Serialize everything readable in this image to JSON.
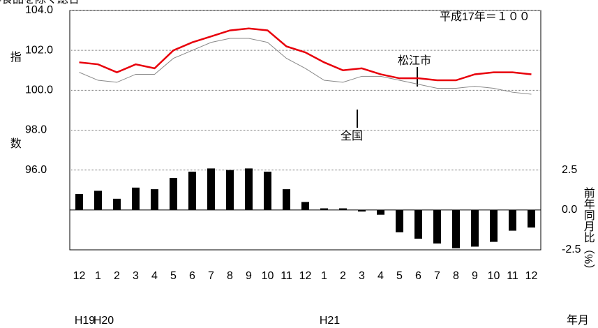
{
  "chart_data": {
    "type": "combo",
    "title": "生鮮食品を除く総合",
    "note": "平成17年＝１００",
    "ylabel": "指数",
    "y2label": "前年同月比（%）",
    "xlabel": "年月",
    "categories": [
      "12",
      "1",
      "2",
      "3",
      "4",
      "5",
      "6",
      "7",
      "8",
      "9",
      "10",
      "11",
      "12",
      "1",
      "2",
      "3",
      "4",
      "5",
      "6",
      "7",
      "8",
      "9",
      "10",
      "11",
      "12"
    ],
    "years": [
      "H19",
      "H20",
      null,
      null,
      null,
      null,
      null,
      null,
      null,
      null,
      null,
      null,
      null,
      "H21",
      null,
      null,
      null,
      null,
      null,
      null,
      null,
      null,
      null,
      null,
      null
    ],
    "series": [
      {
        "name": "松江市",
        "type": "line",
        "color": "#e8000b",
        "values": [
          101.4,
          101.3,
          100.9,
          101.3,
          101.1,
          102.0,
          102.4,
          102.7,
          103.0,
          103.1,
          103.0,
          102.2,
          101.9,
          101.4,
          101.0,
          101.1,
          100.8,
          100.6,
          100.6,
          100.5,
          100.5,
          100.8,
          100.9,
          100.9,
          100.8
        ]
      },
      {
        "name": "全国",
        "type": "line",
        "color": "#888888",
        "values": [
          100.9,
          100.5,
          100.4,
          100.8,
          100.8,
          101.6,
          102.0,
          102.4,
          102.6,
          102.6,
          102.4,
          101.6,
          101.1,
          100.5,
          100.4,
          100.7,
          100.7,
          100.5,
          100.3,
          100.1,
          100.1,
          100.2,
          100.1,
          99.9,
          99.8
        ]
      },
      {
        "type": "bar",
        "axis": "y2",
        "color": "#000000",
        "values": [
          1.0,
          1.2,
          0.7,
          1.4,
          1.3,
          2.0,
          2.4,
          2.6,
          2.5,
          2.6,
          2.4,
          1.3,
          0.5,
          0.1,
          0.1,
          -0.1,
          -0.3,
          -1.4,
          -1.8,
          -2.1,
          -2.4,
          -2.3,
          -2.0,
          -1.3,
          -1.1
        ]
      }
    ],
    "ylim": [
      92,
      104
    ],
    "yticks": [
      {
        "value": 96,
        "label": "96.0"
      },
      {
        "value": 98,
        "label": "98.0"
      },
      {
        "value": 100,
        "label": "100.0"
      },
      {
        "value": 102,
        "label": "102.0"
      },
      {
        "value": 104,
        "label": "104.0"
      }
    ],
    "y2lim": [
      -2.5,
      12.5
    ],
    "y2ticks": [
      {
        "value": -2.5,
        "label": "-2.5"
      },
      {
        "value": 0,
        "label": "0.0"
      },
      {
        "value": 2.5,
        "label": "2.5"
      }
    ],
    "grid": true
  }
}
